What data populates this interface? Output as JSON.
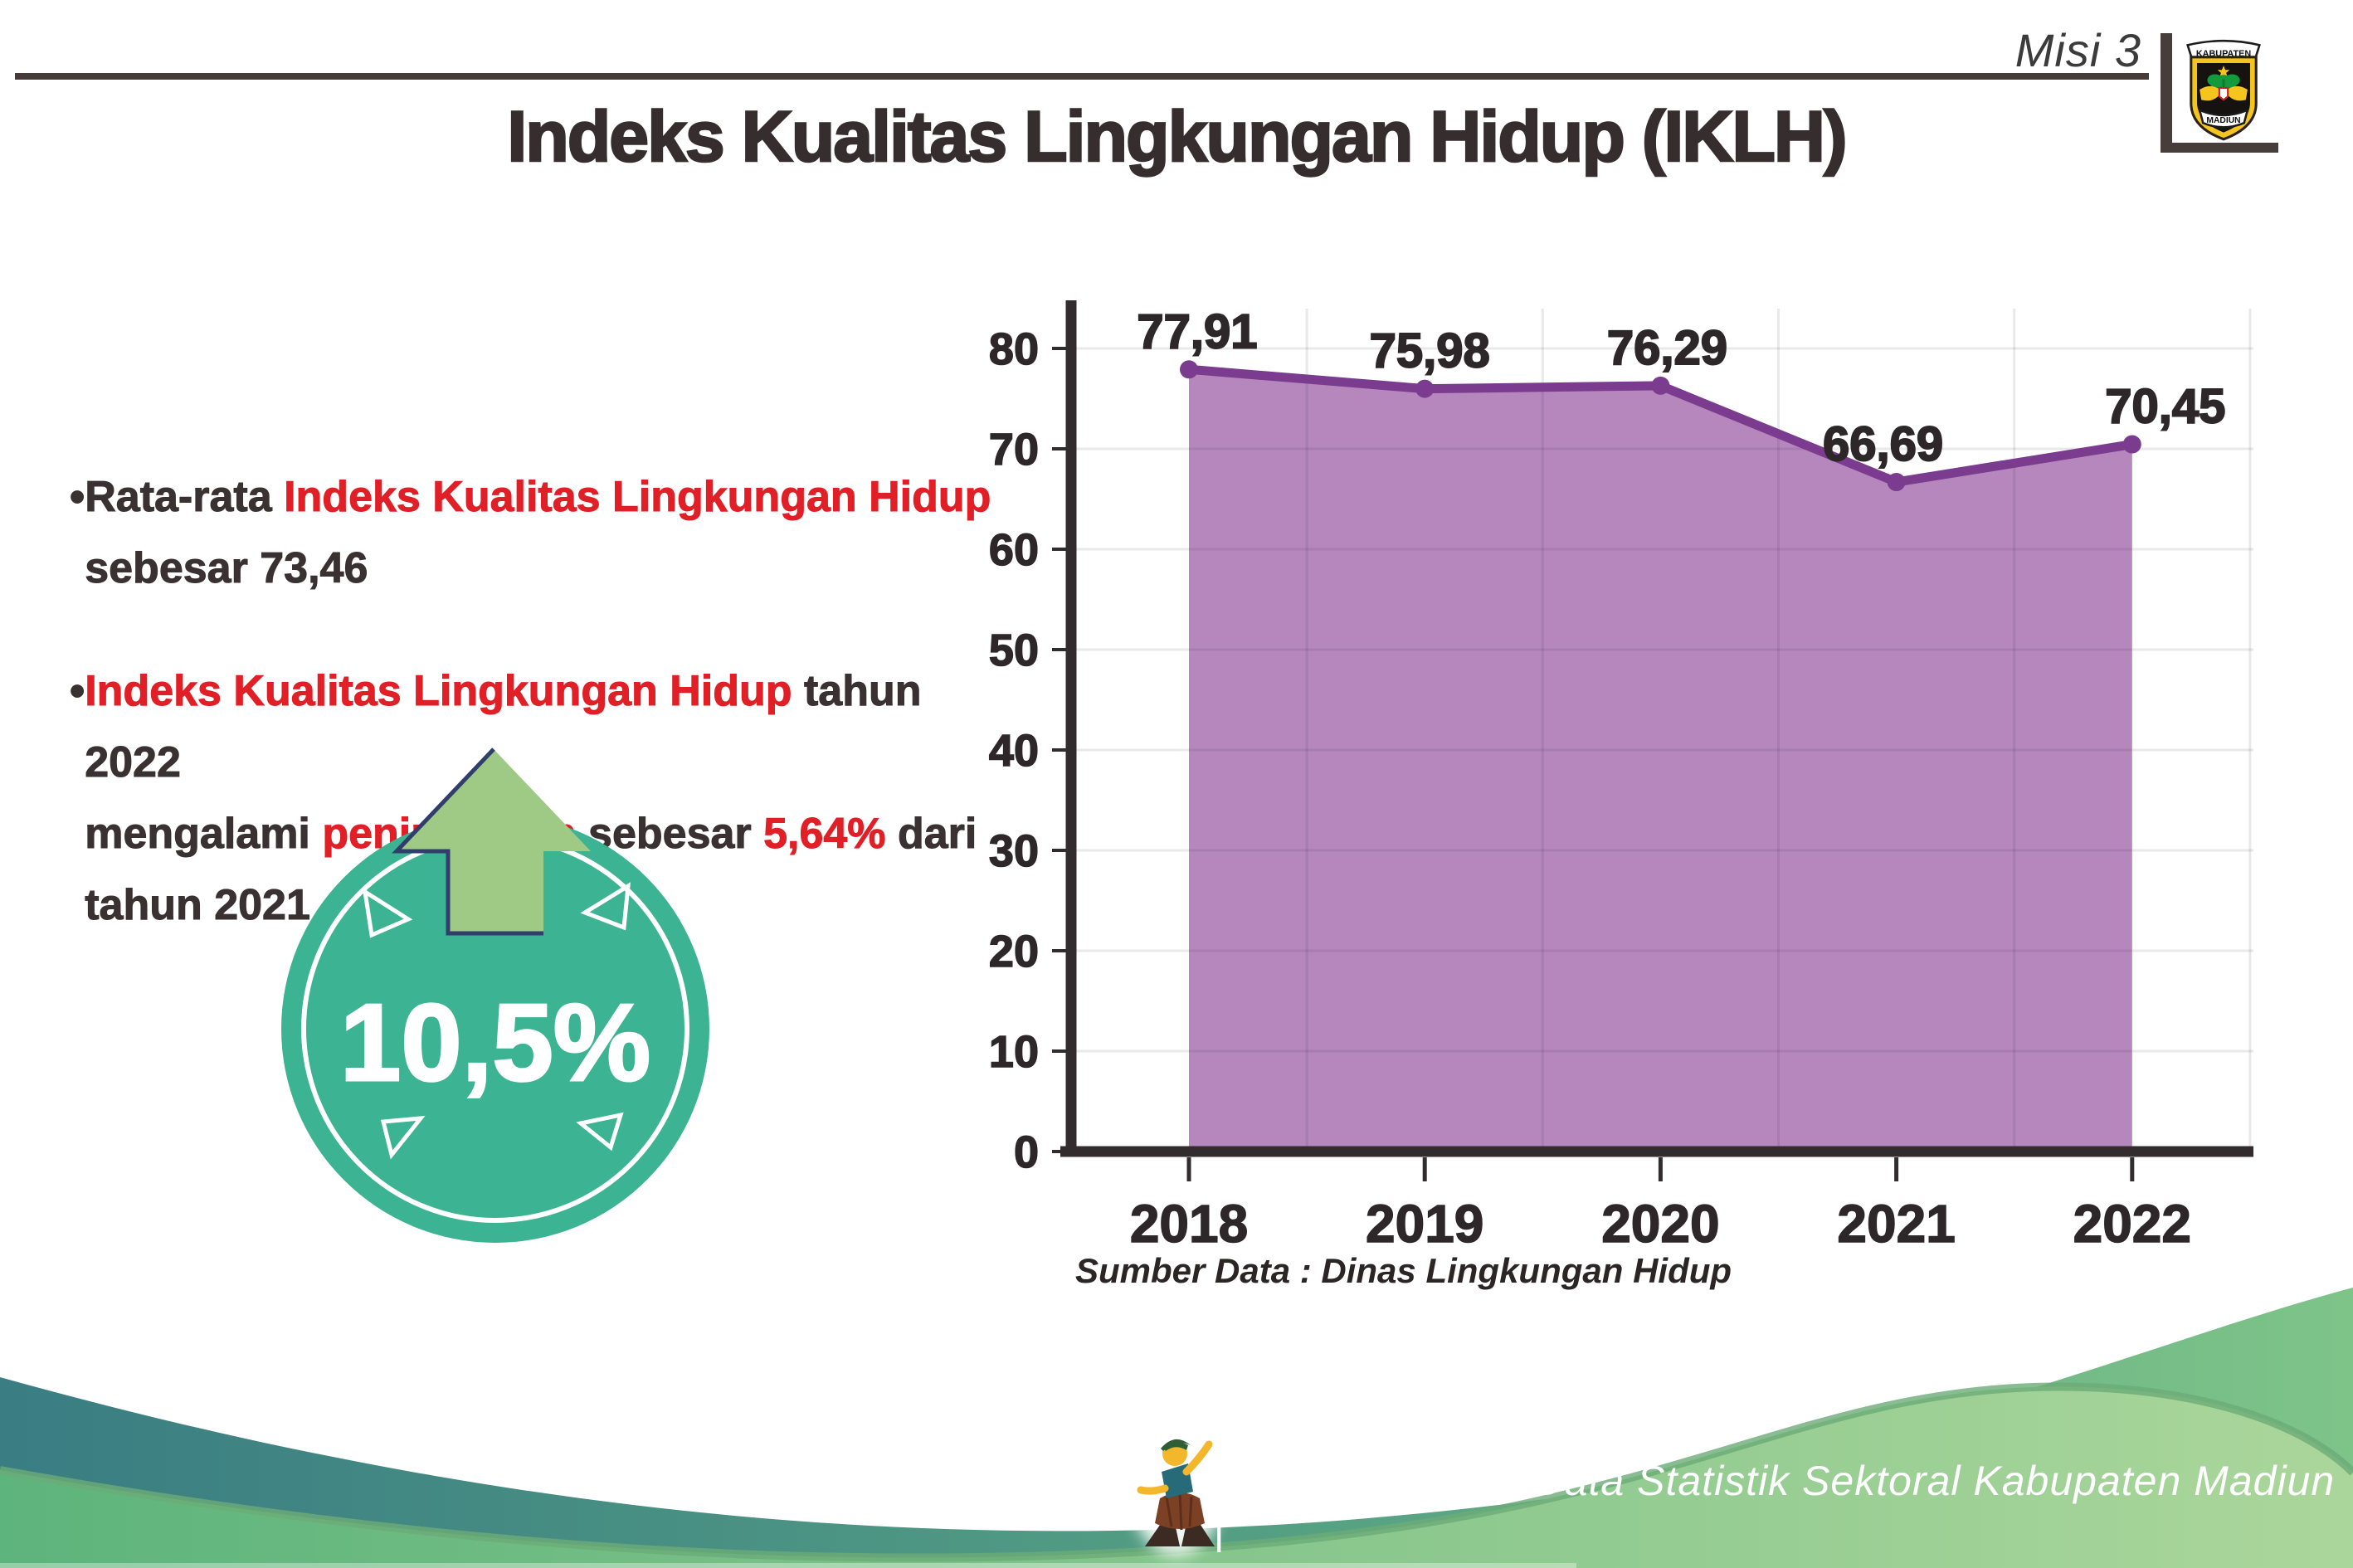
{
  "header": {
    "misi": "Misi 3",
    "logo": {
      "top": "KABUPATEN",
      "bottom": "MADIUN"
    }
  },
  "title": "Indeks Kualitas Lingkungan Hidup (IKLH)",
  "bullets": {
    "dot": "•",
    "b1_l1_a": "Rata-rata ",
    "b1_l1_b": "Indeks Kualitas Lingkungan Hidup",
    "b1_l2": "sebesar 73,46",
    "b2_l1_a": "Indeks Kualitas Lingkungan Hidup",
    "b2_l1_b": " tahun 2022",
    "b2_l2_a": "mengalami ",
    "b2_l2_b": "peningkatan",
    "b2_l2_c": " sebesar ",
    "b2_l2_d": "5,64%",
    "b2_l2_e": " dari",
    "b2_l3": "tahun 2021"
  },
  "badge": {
    "value": "10,5%"
  },
  "chart_data": {
    "type": "area",
    "title": "",
    "categories": [
      "2018",
      "2019",
      "2020",
      "2021",
      "2022"
    ],
    "values": [
      77.91,
      75.98,
      76.29,
      66.69,
      70.45
    ],
    "value_labels": [
      "77,91",
      "75,98",
      "76,29",
      "66,69",
      "70,45"
    ],
    "xlabel": "",
    "ylabel": "",
    "ylim": [
      0,
      80
    ],
    "ytick_step": 10,
    "yticks": [
      "0",
      "10",
      "20",
      "30",
      "40",
      "50",
      "60",
      "70",
      "80"
    ],
    "grid": "on",
    "legend": "none",
    "source": "Sumber Data : Dinas Lingkungan Hidup",
    "colors": {
      "fill": "#b687bd",
      "line": "#7b3c90"
    }
  },
  "footer": {
    "credit": "Media Infografis Data Statistik Sektoral Kabupaten Madiun |"
  },
  "colors": {
    "accent_red": "#e01f26",
    "badge_teal": "#3cb392",
    "arrow_green": "#9fca85",
    "wave_teal": "#3a7d83",
    "wave_green": "#a6d299"
  }
}
